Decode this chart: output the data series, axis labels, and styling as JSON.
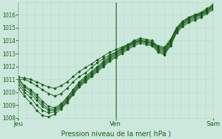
{
  "title": "Pression niveau de la mer( hPa )",
  "bg_color": "#cce8dc",
  "grid_color_minor": "#b8d8cc",
  "grid_color_major": "#99c4b0",
  "line_color": "#1a5c1a",
  "ylim": [
    1008,
    1017
  ],
  "yticks": [
    1008,
    1009,
    1010,
    1011,
    1012,
    1013,
    1014,
    1015,
    1016
  ],
  "xlabels": [
    "Jeu",
    "Ven",
    "Sam"
  ],
  "xtick_pos": [
    0,
    1,
    2
  ],
  "xvlines_dark": [
    1.0
  ],
  "series": [
    [
      1011.1,
      1010.5,
      1010.2,
      1009.8,
      1009.3,
      1008.9,
      1008.8,
      1009.1,
      1009.6,
      1010.2,
      1010.8,
      1011.2,
      1011.6,
      1012.0,
      1012.4,
      1012.8,
      1013.1,
      1013.4,
      1013.7,
      1014.0,
      1014.2,
      1014.1,
      1014.0,
      1013.5,
      1013.3,
      1014.0,
      1015.0,
      1015.5,
      1015.8,
      1016.0,
      1016.2,
      1016.5,
      1016.8
    ],
    [
      1011.0,
      1010.4,
      1010.1,
      1009.6,
      1009.1,
      1008.7,
      1008.7,
      1009.0,
      1009.5,
      1010.1,
      1010.7,
      1011.1,
      1011.5,
      1011.9,
      1012.3,
      1012.7,
      1013.0,
      1013.3,
      1013.6,
      1013.9,
      1014.1,
      1014.0,
      1013.9,
      1013.4,
      1013.2,
      1013.9,
      1014.9,
      1015.4,
      1015.7,
      1015.9,
      1016.1,
      1016.4,
      1016.7
    ],
    [
      1010.8,
      1010.2,
      1009.9,
      1009.4,
      1008.9,
      1008.6,
      1008.6,
      1008.9,
      1009.4,
      1010.0,
      1010.6,
      1011.0,
      1011.4,
      1011.8,
      1012.2,
      1012.6,
      1012.9,
      1013.2,
      1013.5,
      1013.8,
      1014.0,
      1013.9,
      1013.8,
      1013.3,
      1013.1,
      1013.8,
      1014.8,
      1015.3,
      1015.6,
      1015.8,
      1016.0,
      1016.3,
      1016.6
    ],
    [
      1010.6,
      1010.0,
      1009.6,
      1009.0,
      1008.6,
      1008.4,
      1008.5,
      1008.8,
      1009.3,
      1009.9,
      1010.5,
      1010.9,
      1011.3,
      1011.7,
      1012.1,
      1012.5,
      1012.8,
      1013.1,
      1013.4,
      1013.7,
      1013.9,
      1013.8,
      1013.7,
      1013.2,
      1013.0,
      1013.7,
      1014.7,
      1015.2,
      1015.5,
      1015.7,
      1015.9,
      1016.2,
      1016.5
    ],
    [
      1010.3,
      1009.7,
      1009.2,
      1008.6,
      1008.2,
      1008.1,
      1008.3,
      1008.7,
      1009.2,
      1009.8,
      1010.4,
      1010.8,
      1011.2,
      1011.6,
      1012.0,
      1012.4,
      1012.7,
      1013.0,
      1013.3,
      1013.6,
      1013.8,
      1013.7,
      1013.6,
      1013.1,
      1012.9,
      1013.6,
      1014.6,
      1015.1,
      1015.4,
      1015.6,
      1015.8,
      1016.1,
      1016.4
    ],
    [
      1011.0,
      1011.0,
      1010.8,
      1010.5,
      1010.2,
      1009.9,
      1009.7,
      1009.9,
      1010.3,
      1010.8,
      1011.2,
      1011.5,
      1011.9,
      1012.3,
      1012.6,
      1012.9,
      1013.1,
      1013.4,
      1013.6,
      1013.8,
      1014.0,
      1013.9,
      1013.8,
      1013.5,
      1013.4,
      1014.0,
      1014.9,
      1015.4,
      1015.7,
      1015.9,
      1016.0,
      1016.3,
      1016.6
    ],
    [
      1011.2,
      1011.1,
      1011.0,
      1010.8,
      1010.6,
      1010.4,
      1010.3,
      1010.5,
      1010.8,
      1011.2,
      1011.6,
      1011.9,
      1012.2,
      1012.5,
      1012.8,
      1013.1,
      1013.3,
      1013.5,
      1013.7,
      1013.9,
      1014.0,
      1013.9,
      1013.8,
      1013.6,
      1013.5,
      1014.1,
      1015.0,
      1015.5,
      1015.8,
      1016.0,
      1016.1,
      1016.4,
      1016.7
    ]
  ]
}
